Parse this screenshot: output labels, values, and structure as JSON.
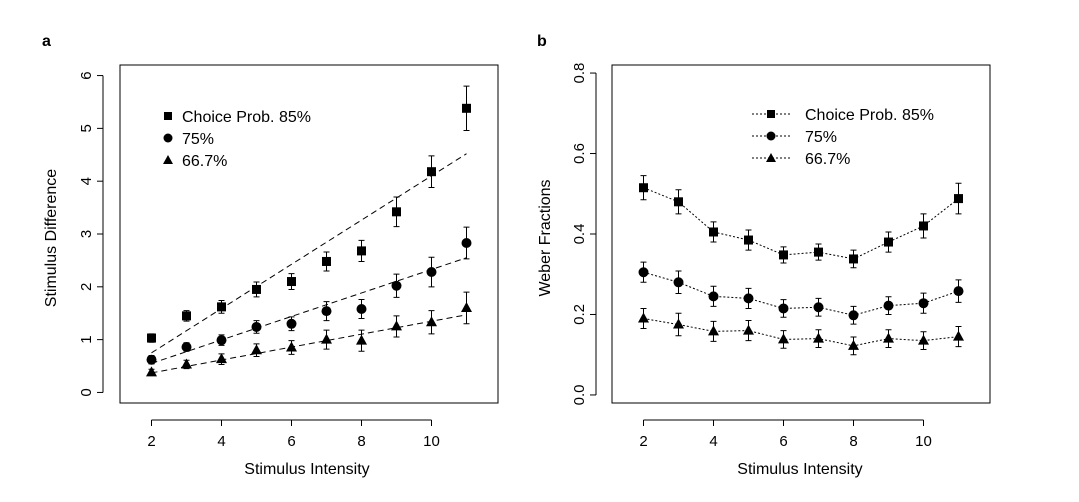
{
  "chart_data": [
    {
      "panel": "a",
      "type": "scatter",
      "title": "",
      "xlabel": "Stimulus Intensity",
      "ylabel": "Stimulus Difference",
      "xlim": [
        1.1,
        11.9
      ],
      "ylim": [
        -0.2,
        6.2
      ],
      "xticks": [
        "2",
        "4",
        "6",
        "8",
        "10"
      ],
      "xtick_values": [
        2,
        4,
        6,
        8,
        10
      ],
      "yticks": [
        "0",
        "1",
        "2",
        "3",
        "4",
        "5",
        "6"
      ],
      "ytick_values": [
        0,
        1,
        2,
        3,
        4,
        5,
        6
      ],
      "grid": false,
      "legend": "top-left",
      "legend_style": "markers",
      "x": [
        2,
        3,
        4,
        5,
        6,
        7,
        8,
        9,
        10,
        11
      ],
      "series": [
        {
          "name": "Choice Prob. 85%",
          "marker": "square",
          "values": [
            1.03,
            1.45,
            1.62,
            1.95,
            2.1,
            2.48,
            2.68,
            3.42,
            4.18,
            5.38
          ],
          "errors": [
            0.08,
            0.1,
            0.12,
            0.14,
            0.15,
            0.18,
            0.2,
            0.28,
            0.3,
            0.42
          ],
          "fit": [
            0.75,
            4.52
          ]
        },
        {
          "name": "75%",
          "marker": "circle",
          "values": [
            0.62,
            0.86,
            0.99,
            1.24,
            1.3,
            1.54,
            1.58,
            2.02,
            2.28,
            2.83
          ],
          "errors": [
            0.08,
            0.08,
            0.1,
            0.12,
            0.13,
            0.18,
            0.18,
            0.22,
            0.28,
            0.3
          ],
          "fit": [
            0.55,
            2.55
          ]
        },
        {
          "name": "66.7%",
          "marker": "triangle",
          "values": [
            0.38,
            0.53,
            0.63,
            0.8,
            0.85,
            1.0,
            0.98,
            1.25,
            1.33,
            1.6
          ],
          "errors": [
            0.06,
            0.08,
            0.1,
            0.12,
            0.13,
            0.18,
            0.2,
            0.2,
            0.22,
            0.3
          ],
          "fit": [
            0.37,
            1.47
          ]
        }
      ]
    },
    {
      "panel": "b",
      "type": "line",
      "title": "",
      "xlabel": "Stimulus Intensity",
      "ylabel": "Weber Fractions",
      "xlim": [
        1.1,
        11.9
      ],
      "ylim": [
        -0.02,
        0.82
      ],
      "xticks": [
        "2",
        "4",
        "6",
        "8",
        "10"
      ],
      "xtick_values": [
        2,
        4,
        6,
        8,
        10
      ],
      "yticks": [
        "0.0",
        "0.2",
        "0.4",
        "0.6",
        "0.8"
      ],
      "ytick_values": [
        0,
        0.2,
        0.4,
        0.6,
        0.8
      ],
      "grid": false,
      "legend": "top-right",
      "legend_style": "dotted-line-with-markers",
      "x": [
        2,
        3,
        4,
        5,
        6,
        7,
        8,
        9,
        10,
        11
      ],
      "series": [
        {
          "name": "Choice Prob. 85%",
          "marker": "square",
          "values": [
            0.515,
            0.48,
            0.405,
            0.385,
            0.348,
            0.355,
            0.338,
            0.38,
            0.42,
            0.488
          ],
          "errors": [
            0.03,
            0.03,
            0.025,
            0.025,
            0.02,
            0.02,
            0.022,
            0.025,
            0.03,
            0.038
          ]
        },
        {
          "name": "75%",
          "marker": "circle",
          "values": [
            0.305,
            0.28,
            0.245,
            0.24,
            0.215,
            0.218,
            0.198,
            0.222,
            0.228,
            0.258
          ],
          "errors": [
            0.025,
            0.028,
            0.025,
            0.025,
            0.022,
            0.022,
            0.022,
            0.022,
            0.025,
            0.028
          ]
        },
        {
          "name": "66.7%",
          "marker": "triangle",
          "values": [
            0.19,
            0.175,
            0.158,
            0.16,
            0.138,
            0.14,
            0.122,
            0.14,
            0.135,
            0.145
          ],
          "errors": [
            0.025,
            0.028,
            0.025,
            0.025,
            0.022,
            0.022,
            0.022,
            0.022,
            0.022,
            0.025
          ]
        }
      ]
    }
  ]
}
